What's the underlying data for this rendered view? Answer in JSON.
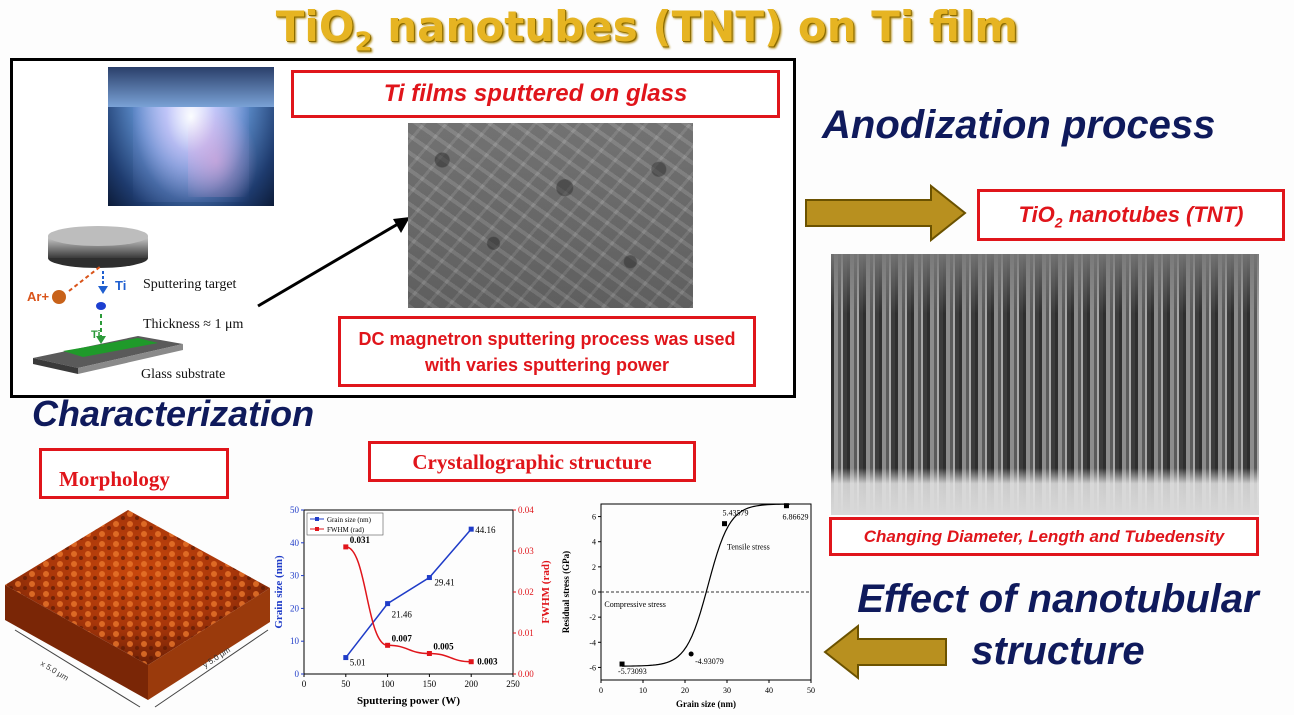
{
  "title": {
    "main": "TiO",
    "sub": "2",
    "rest": " nanotubes (TNT) on Ti film"
  },
  "sputter_box": {
    "sem_caption": "Ti films sputtered on glass",
    "labels": {
      "target": "Sputtering target",
      "ar": "Ar+",
      "ti1": "Ti",
      "ti2": "Ti",
      "thickness": "Thickness ≈ 1 μm",
      "substrate": "Glass substrate"
    },
    "process_line1": "DC magnetron sputtering process was used",
    "process_line2": "with varies  sputtering power"
  },
  "anodization": "Anodization process",
  "tnt_box": {
    "pre": "TiO",
    "sub": "2",
    "post": " nanotubes (TNT)"
  },
  "tnt_caption": "Changing Diameter, Length and Tubedensity",
  "effect_line1": "Effect of nanotubular",
  "effect_line2": "structure",
  "characterization": "Characterization",
  "morphology": "Morphology",
  "afm_axes": {
    "x": "x 5.0 μm",
    "y": "y 5.0 μm"
  },
  "crystallo": "Crystallographic structure",
  "colors": {
    "title": "#e6b422",
    "red": "#e0151b",
    "navy": "#0f1a5c",
    "arrow": "#b8901f"
  },
  "chart_data": [
    {
      "type": "line",
      "xlabel": "Sputtering power (W)",
      "ylabel": "Grain size (nm)",
      "y2label": "FWHM (rad)",
      "xlim": [
        0,
        250
      ],
      "ylim": [
        0,
        50
      ],
      "y2lim": [
        0,
        0.04
      ],
      "xticks": [
        0,
        50,
        100,
        150,
        200,
        250
      ],
      "yticks": [
        0,
        10,
        20,
        30,
        40,
        50
      ],
      "y2ticks": [
        "0.00",
        "0.01",
        "0.02",
        "0.03",
        "0.04"
      ],
      "legend_position": "top-left",
      "series": [
        {
          "name": "Grain size (nm)",
          "axis": "left",
          "color": "#1f3cc8",
          "x": [
            50,
            100,
            150,
            200
          ],
          "values": [
            5.01,
            21.46,
            29.41,
            44.16
          ],
          "labels": [
            "5.01",
            "21.46",
            "29.41",
            "44.16"
          ]
        },
        {
          "name": "FWHM (rad)",
          "axis": "right",
          "color": "#e0151b",
          "x": [
            50,
            100,
            150,
            200
          ],
          "values": [
            0.031,
            0.007,
            0.005,
            0.003
          ],
          "labels": [
            "0.031",
            "0.007",
            "0.005",
            "0.003"
          ]
        }
      ]
    },
    {
      "type": "scatter",
      "xlabel": "Grain size (nm)",
      "ylabel": "Residual stress (GPa)",
      "xlim": [
        0,
        50
      ],
      "ylim": [
        -7,
        7
      ],
      "xticks": [
        0,
        10,
        20,
        30,
        40,
        50
      ],
      "yticks": [
        -6,
        -4,
        -2,
        0,
        2,
        4,
        6
      ],
      "annotations": [
        "Tensile stress",
        "Compressive stress"
      ],
      "series": [
        {
          "name": "",
          "x": [
            5.01,
            21.46,
            29.41,
            44.16
          ],
          "values": [
            -5.73093,
            -4.93079,
            5.43579,
            6.86629
          ],
          "labels": [
            "-5.73093",
            "-4.93079",
            "5.43579",
            "6.86629"
          ]
        }
      ]
    }
  ]
}
